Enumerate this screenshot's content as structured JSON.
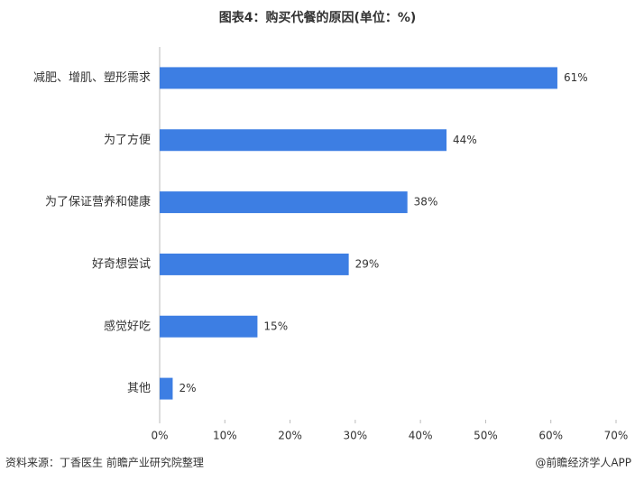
{
  "chart_data": {
    "type": "hbar",
    "title": "图表4：购买代餐的原因(单位：%)",
    "categories": [
      "减肥、增肌、塑形需求",
      "为了方便",
      "为了保证营养和健康",
      "好奇想尝试",
      "感觉好吃",
      "其他"
    ],
    "values": [
      61,
      44,
      38,
      29,
      15,
      2
    ],
    "value_labels": [
      "61%",
      "44%",
      "38%",
      "29%",
      "15%",
      "2%"
    ],
    "color": "#3d7ee3",
    "xlim": [
      0,
      70
    ],
    "xticks": [
      {
        "value": 0,
        "label": "0%"
      },
      {
        "value": 10,
        "label": "10%"
      },
      {
        "value": 20,
        "label": "20%"
      },
      {
        "value": 30,
        "label": "30%"
      },
      {
        "value": 40,
        "label": "40%"
      },
      {
        "value": 50,
        "label": "50%"
      },
      {
        "value": 60,
        "label": "60%"
      },
      {
        "value": 70,
        "label": "70%"
      }
    ],
    "grid": false,
    "source": "资料来源：丁香医生 前瞻产业研究院整理",
    "credit": "@前瞻经济学人APP"
  }
}
